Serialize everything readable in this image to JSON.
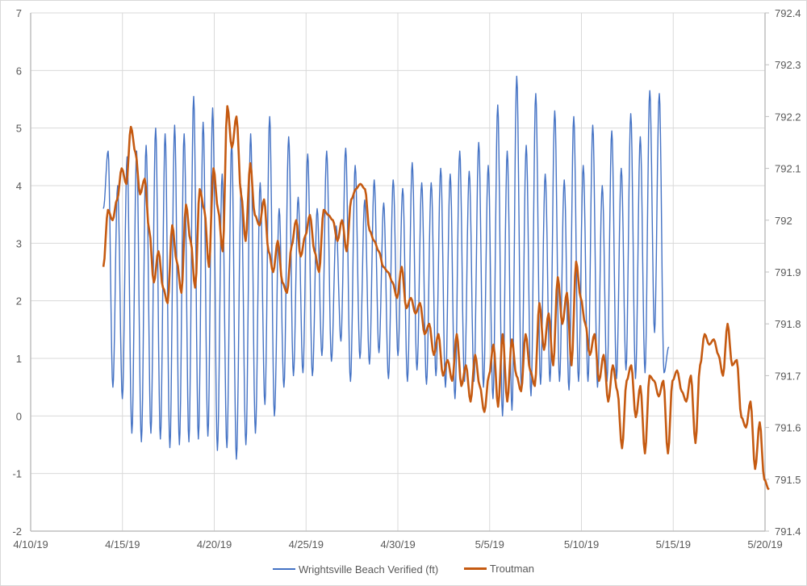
{
  "chart_data": {
    "type": "line",
    "title": "",
    "xlabel": "",
    "ylabel": "",
    "y2label": "",
    "x_ticks": [
      "4/10/19",
      "4/15/19",
      "4/20/19",
      "4/25/19",
      "4/30/19",
      "5/5/19",
      "5/10/19",
      "5/15/19",
      "5/20/19"
    ],
    "x_range_days": [
      0,
      40
    ],
    "x_origin": "4/10/19",
    "ylim": [
      -2,
      7
    ],
    "y_ticks": [
      "-2",
      "-1",
      "0",
      "1",
      "2",
      "3",
      "4",
      "5",
      "6",
      "7"
    ],
    "y2lim": [
      791.4,
      792.4
    ],
    "y2_ticks": [
      "791.4",
      "791.5",
      "791.6",
      "791.7",
      "791.8",
      "791.9",
      "792",
      "792.1",
      "792.2",
      "792.3",
      "792.4"
    ],
    "grid": true,
    "legend_position": "bottom",
    "series": [
      {
        "name": "Wrightsville Beach Verified (ft)",
        "axis": "left",
        "color": "#4472c4",
        "start_day": 3.96,
        "step_days": 0.2588,
        "extrema": [
          3.6,
          4.6,
          0.5,
          4.0,
          0.3,
          4.5,
          -0.3,
          4.6,
          -0.45,
          4.7,
          -0.3,
          5.0,
          -0.4,
          4.9,
          -0.55,
          5.05,
          -0.5,
          4.9,
          -0.45,
          5.55,
          -0.4,
          5.1,
          -0.35,
          5.35,
          -0.6,
          4.2,
          -0.55,
          4.75,
          -0.75,
          3.95,
          -0.5,
          4.9,
          -0.3,
          4.05,
          0.2,
          5.2,
          0.0,
          3.6,
          0.5,
          4.85,
          0.7,
          3.8,
          0.75,
          4.55,
          0.7,
          3.6,
          1.05,
          4.6,
          0.95,
          3.3,
          1.3,
          4.65,
          0.6,
          4.35,
          1.0,
          3.75,
          0.9,
          4.1,
          1.1,
          3.7,
          0.65,
          4.1,
          1.05,
          3.95,
          0.6,
          4.4,
          0.8,
          4.05,
          0.55,
          4.05,
          0.7,
          4.3,
          0.5,
          4.2,
          0.3,
          4.6,
          0.6,
          4.25,
          0.6,
          4.75,
          0.5,
          4.35,
          0.3,
          5.4,
          0.0,
          4.6,
          0.1,
          5.9,
          0.45,
          4.7,
          0.35,
          5.6,
          0.55,
          4.2,
          0.6,
          5.3,
          0.6,
          4.1,
          0.45,
          5.2,
          0.6,
          4.35,
          0.6,
          5.05,
          0.5,
          4.0,
          0.6,
          4.95,
          0.65,
          4.3,
          0.8,
          5.25,
          0.65,
          4.85,
          0.75,
          5.65,
          1.45,
          5.6,
          0.75,
          1.2
        ]
      },
      {
        "name": "Troutman",
        "axis": "right",
        "color": "#c55a11",
        "start_day": 3.96,
        "step_days": 0.25,
        "values": [
          791.91,
          792.02,
          792.0,
          792.04,
          792.1,
          792.07,
          792.18,
          792.13,
          792.05,
          792.08,
          791.98,
          791.88,
          791.94,
          791.87,
          791.84,
          791.99,
          791.92,
          791.86,
          792.03,
          791.96,
          791.87,
          792.06,
          792.02,
          791.91,
          792.1,
          792.02,
          791.94,
          792.22,
          792.14,
          792.2,
          792.05,
          791.96,
          792.11,
          792.01,
          791.99,
          792.04,
          791.94,
          791.9,
          791.96,
          791.88,
          791.86,
          791.95,
          792.0,
          791.93,
          791.97,
          792.01,
          791.94,
          791.9,
          792.02,
          792.01,
          792.0,
          791.96,
          792.0,
          791.94,
          792.04,
          792.06,
          792.07,
          792.06,
          791.98,
          791.96,
          791.94,
          791.91,
          791.9,
          791.88,
          791.85,
          791.91,
          791.83,
          791.85,
          791.82,
          791.84,
          791.78,
          791.8,
          791.74,
          791.78,
          791.7,
          791.73,
          791.69,
          791.78,
          791.68,
          791.72,
          791.65,
          791.74,
          791.68,
          791.63,
          791.7,
          791.76,
          791.64,
          791.78,
          791.65,
          791.77,
          791.7,
          791.67,
          791.78,
          791.71,
          791.68,
          791.84,
          791.75,
          791.82,
          791.72,
          791.89,
          791.8,
          791.86,
          791.72,
          791.92,
          791.85,
          791.8,
          791.74,
          791.78,
          791.69,
          791.74,
          791.65,
          791.72,
          791.67,
          791.56,
          791.69,
          791.72,
          791.62,
          791.68,
          791.55,
          791.7,
          791.69,
          791.66,
          791.69,
          791.55,
          791.69,
          791.71,
          791.67,
          791.65,
          791.7,
          791.57,
          791.72,
          791.78,
          791.76,
          791.77,
          791.74,
          791.7,
          791.8,
          791.72,
          791.73,
          791.62,
          791.6,
          791.65,
          791.52,
          791.61,
          791.5,
          791.48
        ]
      }
    ]
  }
}
